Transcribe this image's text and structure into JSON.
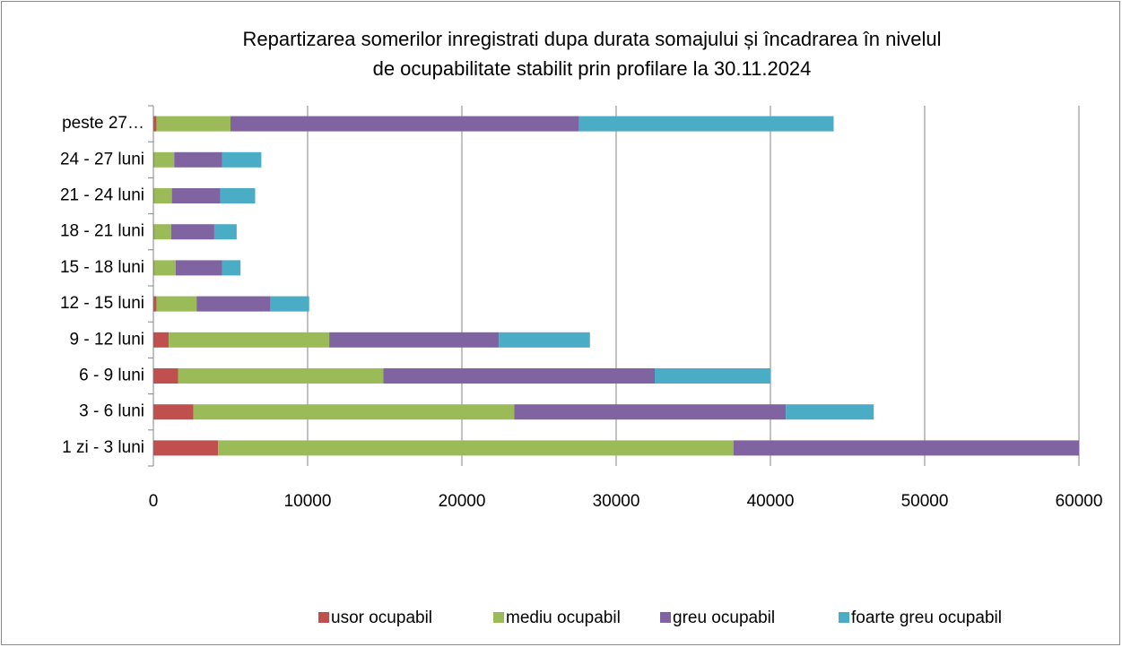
{
  "chart_data": {
    "type": "stacked-bar-horizontal",
    "title": [
      "Repartizarea somerilor inregistrati dupa  durata somajului  și încadrarea în nivelul",
      "de ocupabilitate stabilit prin profilare  la 30.11.2024"
    ],
    "categories": [
      "1 zi - 3 luni",
      "3 - 6 luni",
      "6 - 9 luni",
      "9 - 12 luni",
      "12 - 15 luni",
      "15 - 18 luni",
      "18 - 21 luni",
      "21 - 24 luni",
      "24 - 27 luni",
      "peste 27…"
    ],
    "series": [
      {
        "name": "usor ocupabil",
        "color": "#c0504d",
        "values": [
          4200,
          2600,
          1600,
          1000,
          200,
          50,
          50,
          50,
          50,
          200
        ]
      },
      {
        "name": "mediu ocupabil",
        "color": "#9bbb59",
        "values": [
          33400,
          20800,
          13300,
          10400,
          2600,
          1400,
          1100,
          1150,
          1300,
          4800
        ]
      },
      {
        "name": "greu ocupabil",
        "color": "#8064a2",
        "values": [
          22400,
          17600,
          17600,
          11000,
          4800,
          3000,
          2800,
          3150,
          3100,
          22600
        ]
      },
      {
        "name": "foarte greu ocupabil",
        "color": "#4bacc6",
        "values": [
          0,
          5700,
          7500,
          5900,
          2500,
          1200,
          1450,
          2250,
          2550,
          16500
        ]
      }
    ],
    "xlim": [
      0,
      60000
    ],
    "xticks": [
      0,
      10000,
      20000,
      30000,
      40000,
      50000,
      60000
    ],
    "grid": true,
    "legend": "bottom"
  }
}
